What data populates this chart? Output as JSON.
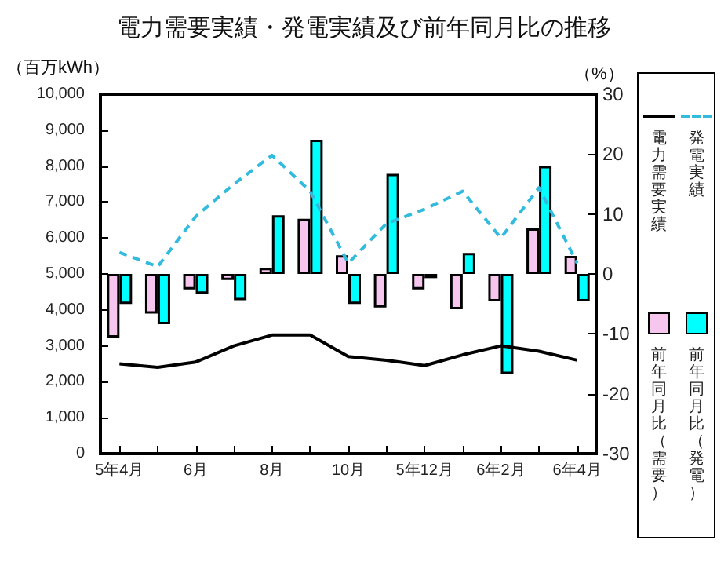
{
  "chart_data": {
    "type": "bar",
    "title": "電力需要実績・発電実績及び前年同月比の推移",
    "ylabel": "（百万kWh）",
    "y2label": "（%）",
    "categories": [
      "5年4月",
      null,
      "6月",
      null,
      "8月",
      null,
      "10月",
      null,
      "5年12月",
      null,
      "6年2月",
      null,
      "6年4月"
    ],
    "series": [
      {
        "name": "電力需要実績",
        "type": "line",
        "color": "#000000",
        "line_style": "solid",
        "values": [
          2500,
          2400,
          2550,
          3000,
          3300,
          3300,
          2700,
          2600,
          2450,
          2750,
          3000,
          2850,
          2600
        ]
      },
      {
        "name": "発電実績",
        "type": "line",
        "color": "#33bbdd",
        "line_style": "dashed",
        "values": [
          5600,
          5200,
          6600,
          7500,
          8300,
          7300,
          5300,
          6400,
          6800,
          7300,
          6000,
          7400,
          5300
        ]
      },
      {
        "name": "前年同月比（需要）",
        "axis": "y2",
        "color": "#f7c6ef",
        "values": [
          -10.6,
          -6.6,
          -2.6,
          -1.0,
          1.0,
          9.2,
          3.1,
          -5.6,
          -2.6,
          -5.9,
          -4.6,
          7.6,
          3.0
        ]
      },
      {
        "name": "前年同月比（発電）",
        "axis": "y2",
        "color": "#00ffff",
        "values": [
          -5.0,
          -8.4,
          -3.3,
          -4.4,
          9.8,
          22.4,
          -5.0,
          16.7,
          -0.7,
          3.5,
          -16.7,
          18.0,
          -4.6
        ]
      }
    ],
    "ylim": [
      0,
      10000
    ],
    "yticks": [
      {
        "value": 0,
        "label": "0"
      },
      {
        "value": 1000,
        "label": "1,000"
      },
      {
        "value": 2000,
        "label": "2,000"
      },
      {
        "value": 3000,
        "label": "3,000"
      },
      {
        "value": 4000,
        "label": "4,000"
      },
      {
        "value": 5000,
        "label": "5,000"
      },
      {
        "value": 6000,
        "label": "6,000"
      },
      {
        "value": 7000,
        "label": "7,000"
      },
      {
        "value": 8000,
        "label": "8,000"
      },
      {
        "value": 9000,
        "label": "9,000"
      },
      {
        "value": 10000,
        "label": "10,000"
      }
    ],
    "y2lim": [
      -30,
      30
    ],
    "y2ticks": [
      -30,
      -20,
      -10,
      0,
      10,
      20,
      30
    ],
    "grid": false,
    "legend": "right"
  }
}
